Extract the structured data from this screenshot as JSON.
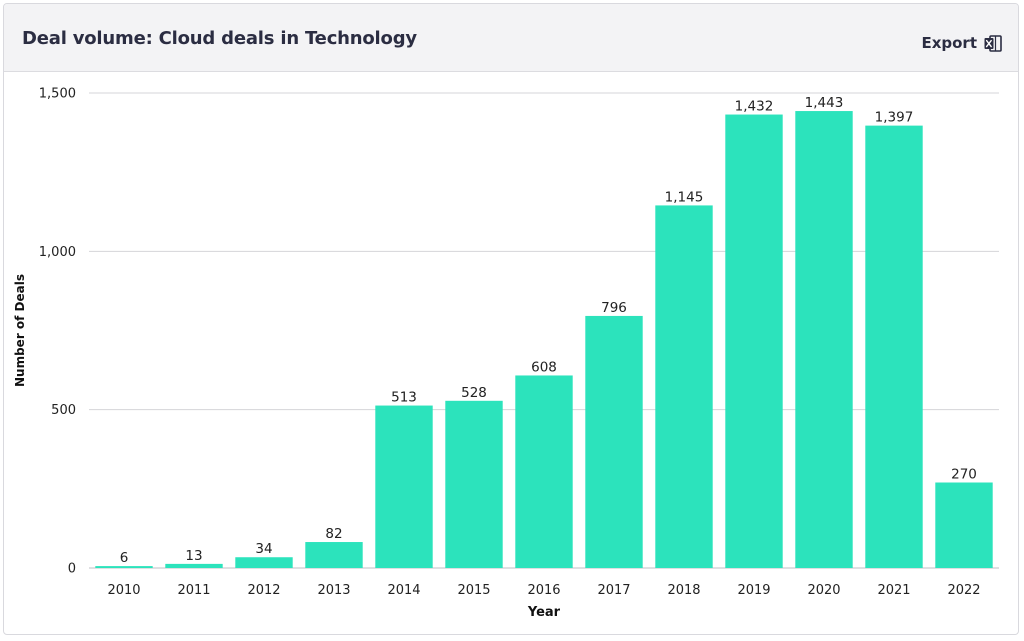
{
  "header": {
    "title": "Deal volume: Cloud deals in Technology",
    "export_label": "Export",
    "export_icon": "excel-file-icon"
  },
  "chart_data": {
    "type": "bar",
    "title": "",
    "xlabel": "Year",
    "ylabel": "Number of Deals",
    "categories": [
      "2010",
      "2011",
      "2012",
      "2013",
      "2014",
      "2015",
      "2016",
      "2017",
      "2018",
      "2019",
      "2020",
      "2021",
      "2022"
    ],
    "values": [
      6,
      13,
      34,
      82,
      513,
      528,
      608,
      796,
      1145,
      1432,
      1443,
      1397,
      270
    ],
    "value_labels": [
      "6",
      "13",
      "34",
      "82",
      "513",
      "528",
      "608",
      "796",
      "1,145",
      "1,432",
      "1,443",
      "1,397",
      "270"
    ],
    "ylim": [
      0,
      1500
    ],
    "yticks": [
      0,
      500,
      1000,
      1500
    ],
    "ytick_labels": [
      "0",
      "500",
      "1,000",
      "1,500"
    ],
    "grid": true,
    "legend": "none",
    "bar_color": "#2ce3bc"
  }
}
